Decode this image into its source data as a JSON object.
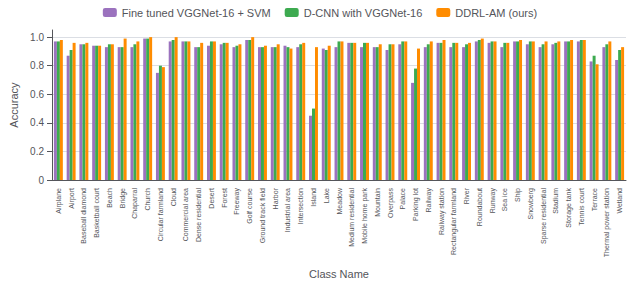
{
  "chart_data": {
    "type": "bar",
    "xlabel": "Class Name",
    "ylabel": "Accuracy",
    "categories": [
      "Airplane",
      "Airport",
      "Baseball\ndiamond",
      "Basketball\ncourt",
      "Beach",
      "Bridge",
      "Chaparral",
      "Church",
      "Circular\nfarmland",
      "Cloud",
      "Commercial\narea",
      "Dense\nresidential",
      "Desert",
      "Forest",
      "Freeway",
      "Golf\ncourse",
      "Ground\ntrack\nfield",
      "Harbor",
      "Industrial\narea",
      "Intersection",
      "Island",
      "Lake",
      "Meadow",
      "Medium\nresidential",
      "Mobile\nhome\npark",
      "Mountain",
      "Overpass",
      "Palace",
      "Parking\nlot",
      "Railway",
      "Railway\nstation",
      "Rectangular\nfarmland",
      "River",
      "Roundabout",
      "Runway",
      "Sea ice",
      "Ship",
      "Snowberg",
      "Sparse\nresidential",
      "Stadium",
      "Storage\ntank",
      "Tennis\ncourt",
      "Terrace",
      "Thermal\npower\nstation",
      "Wetland"
    ],
    "series": [
      {
        "name": "Fine tuned VGGNet-16 + SVM",
        "color": "#9B72BE",
        "values": [
          0.97,
          0.87,
          0.95,
          0.94,
          0.93,
          0.93,
          0.93,
          0.99,
          0.75,
          0.97,
          0.97,
          0.93,
          0.94,
          0.95,
          0.93,
          0.98,
          0.93,
          0.93,
          0.94,
          0.93,
          0.45,
          0.92,
          0.93,
          0.96,
          0.93,
          0.93,
          0.91,
          0.95,
          0.68,
          0.93,
          0.96,
          0.93,
          0.93,
          0.97,
          0.96,
          0.93,
          0.97,
          0.95,
          0.93,
          0.95,
          0.97,
          0.97,
          0.83,
          0.93,
          0.84
        ]
      },
      {
        "name": "D-CNN with VGGNet-16",
        "color": "#3DAA50",
        "values": [
          0.97,
          0.91,
          0.95,
          0.94,
          0.95,
          0.93,
          0.95,
          0.99,
          0.8,
          0.98,
          0.97,
          0.93,
          0.97,
          0.96,
          0.94,
          0.98,
          0.93,
          0.93,
          0.93,
          0.95,
          0.5,
          0.91,
          0.97,
          0.96,
          0.96,
          0.93,
          0.95,
          0.97,
          0.78,
          0.95,
          0.96,
          0.96,
          0.95,
          0.98,
          0.97,
          0.96,
          0.97,
          0.97,
          0.95,
          0.96,
          0.97,
          0.98,
          0.87,
          0.95,
          0.91
        ]
      },
      {
        "name": "DDRL-AM (ours)",
        "color": "#FF8C00",
        "values": [
          0.98,
          0.96,
          0.96,
          0.94,
          0.95,
          0.99,
          0.97,
          1.0,
          0.79,
          1.0,
          0.97,
          0.96,
          0.97,
          0.96,
          0.95,
          1.0,
          0.94,
          0.95,
          0.92,
          0.96,
          0.93,
          0.94,
          0.97,
          0.96,
          0.96,
          0.95,
          0.95,
          0.97,
          0.92,
          0.97,
          0.98,
          0.96,
          0.96,
          0.99,
          0.97,
          0.96,
          0.98,
          0.97,
          0.97,
          0.97,
          0.98,
          0.98,
          0.81,
          0.97,
          0.93
        ]
      }
    ],
    "ylim": [
      0,
      1.05
    ],
    "yticks": [
      0,
      0.2,
      0.4,
      0.6,
      0.8,
      {
        "value": 1.0,
        "label": "1.0"
      }
    ],
    "grid": true,
    "legend": "upper center"
  }
}
